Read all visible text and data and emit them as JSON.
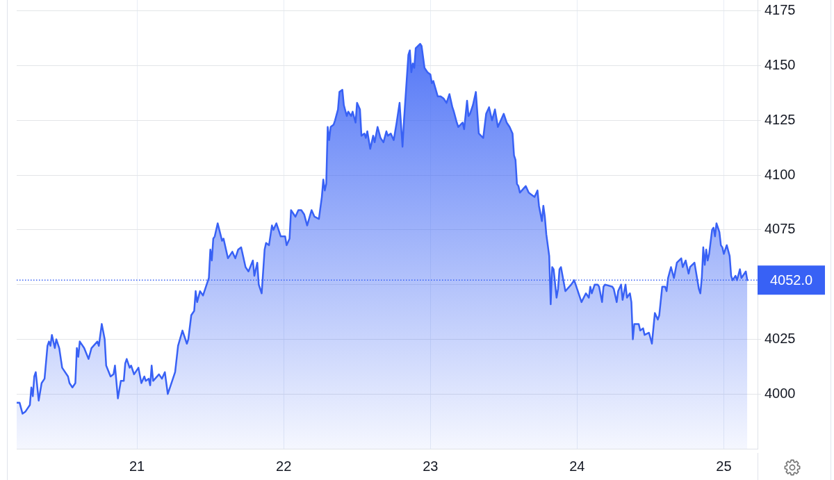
{
  "chart_data": {
    "type": "area",
    "color": "#3861f5",
    "x": [
      20.18,
      20.2,
      20.22,
      20.24,
      20.27,
      20.28,
      20.29,
      20.3,
      20.31,
      20.33,
      20.35,
      20.37,
      20.39,
      20.4,
      20.41,
      20.42,
      20.44,
      20.45,
      20.47,
      20.49,
      20.53,
      20.54,
      20.56,
      20.58,
      20.59,
      20.6,
      20.61,
      20.64,
      20.67,
      20.69,
      20.73,
      20.74,
      20.76,
      20.78,
      20.79,
      20.82,
      20.84,
      20.85,
      20.87,
      20.89,
      20.91,
      20.92,
      20.93,
      20.95,
      20.96,
      20.98,
      21.01,
      21.03,
      21.05,
      21.06,
      21.08,
      21.09,
      21.1,
      21.11,
      21.15,
      21.17,
      21.19,
      21.21,
      21.23,
      21.26,
      21.28,
      21.31,
      21.34,
      21.35,
      21.37,
      21.39,
      21.4,
      21.41,
      21.43,
      21.45,
      21.49,
      21.5,
      21.51,
      21.52,
      21.53,
      21.55,
      21.58,
      21.59,
      21.62,
      21.65,
      21.67,
      21.69,
      21.71,
      21.74,
      21.76,
      21.79,
      21.8,
      21.82,
      21.83,
      21.85,
      21.87,
      21.88,
      21.9,
      21.92,
      21.93,
      21.95,
      21.98,
      22.01,
      22.02,
      22.04,
      22.05,
      22.08,
      22.1,
      22.12,
      22.14,
      22.16,
      22.19,
      22.21,
      22.24,
      22.26,
      22.27,
      22.28,
      22.29,
      22.3,
      22.31,
      22.32,
      22.34,
      22.35,
      22.37,
      22.38,
      22.4,
      22.41,
      22.43,
      22.44,
      22.46,
      22.47,
      22.49,
      22.5,
      22.52,
      22.53,
      22.55,
      22.56,
      22.57,
      22.59,
      22.61,
      22.62,
      22.64,
      22.66,
      22.68,
      22.7,
      22.71,
      22.73,
      22.75,
      22.77,
      22.79,
      22.81,
      22.82,
      22.85,
      22.86,
      22.87,
      22.88,
      22.89,
      22.9,
      22.93,
      22.94,
      22.96,
      22.98,
      23.0,
      23.01,
      23.02,
      23.05,
      23.07,
      23.09,
      23.11,
      23.13,
      23.15,
      23.16,
      23.18,
      23.19,
      23.22,
      23.23,
      23.25,
      23.26,
      23.27,
      23.29,
      23.31,
      23.33,
      23.36,
      23.38,
      23.4,
      23.42,
      23.44,
      23.46,
      23.5,
      23.52,
      23.54,
      23.56,
      23.57,
      23.58,
      23.59,
      23.6,
      23.61,
      23.65,
      23.67,
      23.69,
      23.71,
      23.73,
      23.74,
      23.76,
      23.77,
      23.78,
      23.79,
      23.81,
      23.82,
      23.83,
      23.84,
      23.86,
      23.87,
      23.88,
      23.89,
      23.92,
      23.96,
      23.98,
      24.0,
      24.03,
      24.06,
      24.08,
      24.09,
      24.1,
      24.12,
      24.14,
      24.15,
      24.17,
      24.18,
      24.19,
      24.24,
      24.25,
      24.27,
      24.28,
      24.3,
      24.31,
      24.33,
      24.34,
      24.36,
      24.37,
      24.38,
      24.39,
      24.42,
      24.43,
      24.45,
      24.46,
      24.49,
      24.51,
      24.53,
      24.55,
      24.56,
      24.58,
      24.6,
      24.61,
      24.62,
      24.64,
      24.66,
      24.68,
      24.71,
      24.72,
      24.74,
      24.76,
      24.77,
      24.8,
      24.81,
      24.83,
      24.84,
      24.85,
      24.86,
      24.87,
      24.88,
      24.89,
      24.9,
      24.92,
      24.93,
      24.94,
      24.95,
      24.97,
      24.98,
      24.99,
      25.0,
      25.02,
      25.04,
      25.05,
      25.06,
      25.08,
      25.09,
      25.11,
      25.12,
      25.15,
      25.16
    ],
    "values": [
      3996,
      3996,
      3991,
      3992,
      3995,
      4003,
      3999,
      4008,
      4010,
      3997,
      4005,
      4007,
      4022,
      4024,
      4022,
      4027,
      4021,
      4025,
      4021,
      4012,
      4008,
      4005,
      4003,
      4005,
      4021,
      4017,
      4024,
      4021,
      4016,
      4021,
      4024,
      4022,
      4032,
      4025,
      4013,
      4008,
      4009,
      4013,
      3998,
      4006,
      4006,
      4014,
      4016,
      4012,
      4013,
      4009,
      4012,
      4005,
      4008,
      4006,
      4007,
      4004,
      4013,
      4006,
      4009,
      4007,
      4010,
      4000,
      4004,
      4010,
      4022,
      4029,
      4023,
      4025,
      4036,
      4038,
      4047,
      4042,
      4047,
      4045,
      4053,
      4066,
      4061,
      4071,
      4072,
      4078,
      4070,
      4071,
      4062,
      4065,
      4062,
      4066,
      4067,
      4058,
      4056,
      4061,
      4054,
      4060,
      4050,
      4046,
      4066,
      4069,
      4068,
      4077,
      4075,
      4078,
      4072,
      4072,
      4068,
      4071,
      4084,
      4081,
      4084,
      4084,
      4082,
      4077,
      4084,
      4081,
      4080,
      4090,
      4098,
      4093,
      4096,
      4122,
      4116,
      4122,
      4123,
      4125,
      4130,
      4138,
      4139,
      4132,
      4127,
      4129,
      4127,
      4129,
      4124,
      4133,
      4130,
      4118,
      4119,
      4117,
      4120,
      4112,
      4118,
      4115,
      4122,
      4117,
      4115,
      4120,
      4118,
      4119,
      4116,
      4124,
      4133,
      4113,
      4125,
      4155,
      4157,
      4147,
      4151,
      4149,
      4158,
      4160,
      4159,
      4149,
      4147,
      4146,
      4142,
      4143,
      4136,
      4136,
      4135,
      4133,
      4137,
      4131,
      4129,
      4124,
      4122,
      4124,
      4121,
      4134,
      4127,
      4128,
      4132,
      4138,
      4119,
      4117,
      4128,
      4131,
      4125,
      4130,
      4122,
      4128,
      4124,
      4122,
      4119,
      4109,
      4107,
      4096,
      4095,
      4092,
      4095,
      4092,
      4091,
      4090,
      4093,
      4086,
      4079,
      4086,
      4081,
      4073,
      4063,
      4041,
      4058,
      4057,
      4044,
      4048,
      4057,
      4058,
      4047,
      4050,
      4052,
      4048,
      4042,
      4046,
      4044,
      4049,
      4046,
      4050,
      4050,
      4049,
      4042,
      4049,
      4050,
      4049,
      4048,
      4042,
      4047,
      4050,
      4043,
      4050,
      4044,
      4046,
      4042,
      4025,
      4032,
      4032,
      4029,
      4030,
      4027,
      4028,
      4023,
      4037,
      4034,
      4036,
      4049,
      4049,
      4047,
      4053,
      4058,
      4053,
      4060,
      4062,
      4058,
      4061,
      4055,
      4058,
      4060,
      4056,
      4048,
      4046,
      4053,
      4067,
      4059,
      4066,
      4061,
      4064,
      4075,
      4076,
      4072,
      4078,
      4074,
      4068,
      4067,
      4064,
      4068,
      4063,
      4054,
      4052,
      4054,
      4052,
      4057,
      4053,
      4056,
      4052
    ],
    "xlim": [
      20.18,
      25.23
    ],
    "xticks": [
      21,
      22,
      23,
      24,
      25
    ],
    "ylim": [
      3975,
      4180
    ],
    "yticks": [
      4000,
      4025,
      {
        "value": 4050,
        "label": null
      },
      4075,
      4100,
      4125,
      4150,
      4175
    ],
    "grid": true,
    "ref_lines": [
      {
        "axis": "y",
        "value": 4052,
        "label": "4052.0",
        "color": "#3861f5",
        "line_style": "dotted"
      }
    ]
  }
}
